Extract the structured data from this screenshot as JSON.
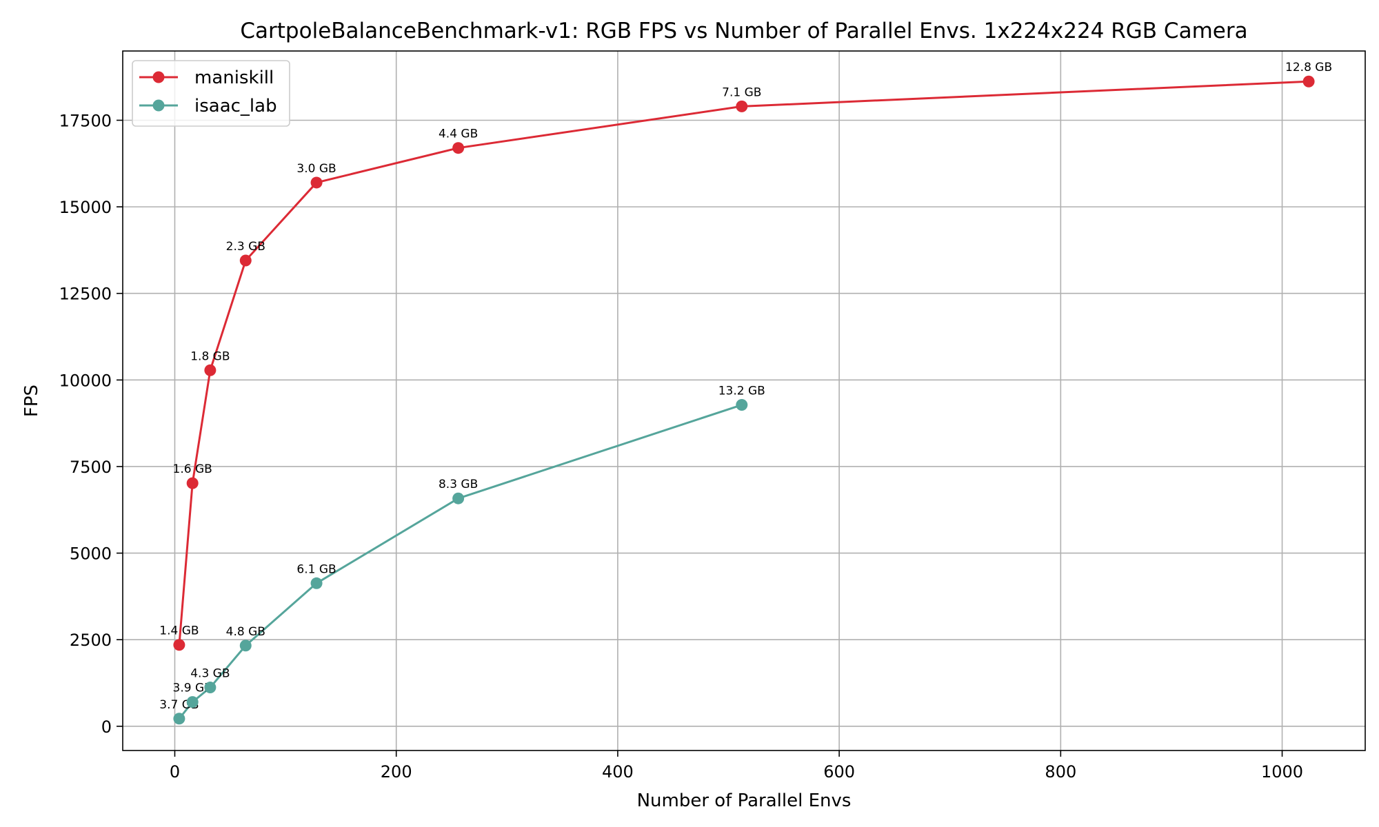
{
  "chart_data": {
    "type": "line",
    "title": "CartpoleBalanceBenchmark-v1: RGB FPS vs Number of Parallel Envs. 1x224x224 RGB Camera",
    "xlabel": "Number of Parallel Envs",
    "ylabel": "FPS",
    "xlim": [
      -47,
      1075
    ],
    "ylim": [
      -700,
      19500
    ],
    "xticks": [
      0,
      200,
      400,
      600,
      800,
      1000
    ],
    "yticks": [
      0,
      2500,
      5000,
      7500,
      10000,
      12500,
      15000,
      17500
    ],
    "grid": true,
    "legend_position": "top-left",
    "series": [
      {
        "name": "maniskill",
        "color": "#dc2a35",
        "points": [
          {
            "x": 4,
            "y": 2350,
            "label": "1.4 GB"
          },
          {
            "x": 16,
            "y": 7020,
            "label": "1.6 GB"
          },
          {
            "x": 32,
            "y": 10280,
            "label": "1.8 GB"
          },
          {
            "x": 64,
            "y": 13450,
            "label": "2.3 GB"
          },
          {
            "x": 128,
            "y": 15700,
            "label": "3.0 GB"
          },
          {
            "x": 256,
            "y": 16700,
            "label": "4.4 GB"
          },
          {
            "x": 512,
            "y": 17900,
            "label": "7.1 GB"
          },
          {
            "x": 1024,
            "y": 18620,
            "label": "12.8 GB"
          }
        ]
      },
      {
        "name": "isaac_lab",
        "color": "#55a59b",
        "points": [
          {
            "x": 4,
            "y": 220,
            "label": "3.7 GB"
          },
          {
            "x": 16,
            "y": 700,
            "label": "3.9 GB"
          },
          {
            "x": 32,
            "y": 1120,
            "label": "4.3 GB"
          },
          {
            "x": 64,
            "y": 2330,
            "label": "4.8 GB"
          },
          {
            "x": 128,
            "y": 4130,
            "label": "6.1 GB"
          },
          {
            "x": 256,
            "y": 6580,
            "label": "8.3 GB"
          },
          {
            "x": 512,
            "y": 9280,
            "label": "13.2 GB"
          }
        ]
      }
    ]
  }
}
